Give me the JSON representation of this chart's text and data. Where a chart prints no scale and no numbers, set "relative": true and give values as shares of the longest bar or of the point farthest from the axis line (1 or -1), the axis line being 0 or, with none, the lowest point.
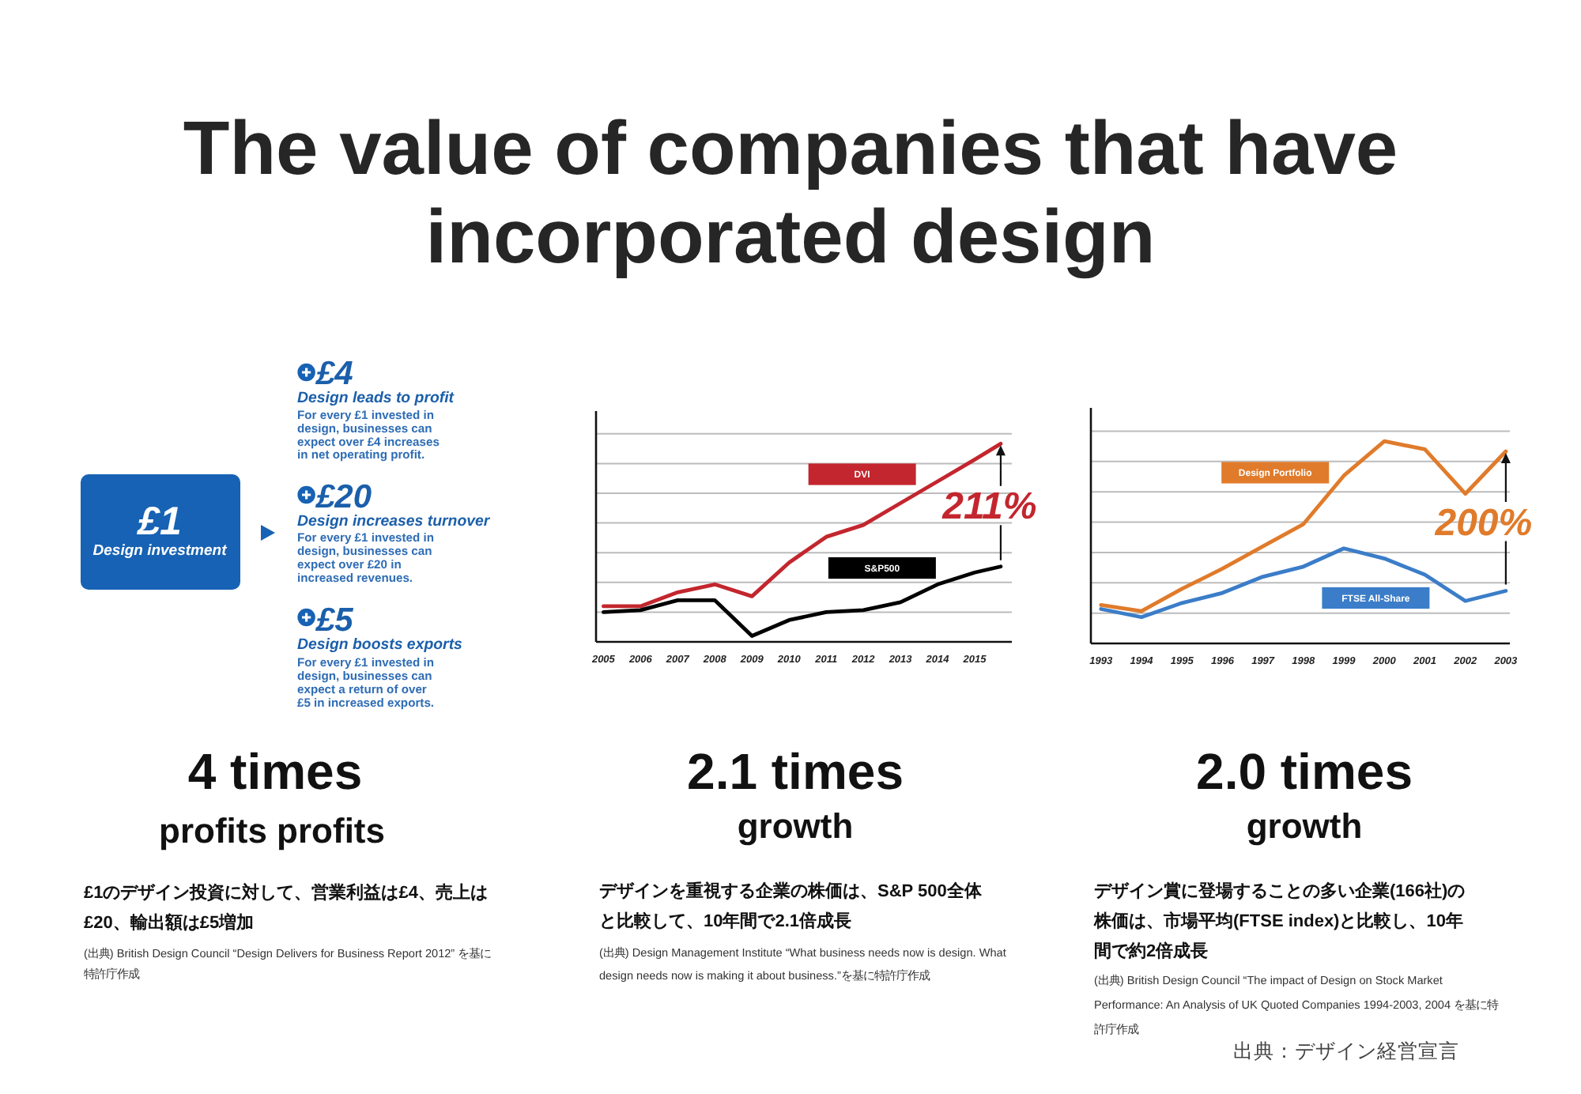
{
  "chart_data": [
    {
      "type": "other",
      "title": "The value of companies that have incorporated design",
      "annotations": [
        "£1",
        "Design investment",
        "£4",
        "Design leads to profit",
        "For every £1 invested in design, businesses can expect over £4 increases in net operating profit.",
        "£20",
        "Design increases turnover",
        "For every £1 invested in design, businesses can expect over £20 in increased revenues.",
        "£5",
        "Design boosts exports",
        "For every £1 invested in design, businesses can expect a return of over £5 in increased exports.",
        "4 times",
        "profits profits",
        "£1のデザイン投資に対して、営業利益は£4、売上は£20、輸出額は£5増加",
        "(出典) British Design Council “Design Delivers for Business Report 2012” を基に特許庁作成"
      ]
    },
    {
      "type": "line",
      "x": [
        2005,
        2006,
        2007,
        2008,
        2009,
        2010,
        2011,
        2012,
        2013,
        2014,
        2015,
        2015.7
      ],
      "xlim": [
        2004.8,
        2016
      ],
      "xticks": [
        2005,
        2006,
        2007,
        2008,
        2009,
        2010,
        2011,
        2012,
        2013,
        2014,
        2015
      ],
      "relative": true,
      "grid": "y",
      "series": [
        {
          "name": "DVI",
          "color": "#c3262e",
          "values": [
            0.18,
            0.18,
            0.25,
            0.29,
            0.23,
            0.4,
            0.53,
            0.59,
            0.7,
            0.81,
            0.92,
            1.0
          ]
        },
        {
          "name": "S&P500",
          "color": "#000000",
          "values": [
            0.15,
            0.16,
            0.21,
            0.21,
            0.03,
            0.11,
            0.15,
            0.16,
            0.2,
            0.29,
            0.35,
            0.38
          ]
        }
      ],
      "annotations": [
        "211%",
        "2.1 times",
        "growth",
        "デザインを重視する企業の株価は、S&P 500全体と比較して、10年間で2.1倍成長",
        "(出典) Design Management Institute “What business needs now is design. What design needs now is making it about business.”を基に特許庁作成"
      ]
    },
    {
      "type": "line",
      "x": [
        1993,
        1994,
        1995,
        1996,
        1997,
        1998,
        1999,
        2000,
        2001,
        2002,
        2003
      ],
      "xlim": [
        1992.75,
        2003.1
      ],
      "xticks": [
        1993,
        1994,
        1995,
        1996,
        1997,
        1998,
        1999,
        2000,
        2001,
        2002,
        2003
      ],
      "relative": true,
      "grid": "y",
      "series": [
        {
          "name": "Design Portfolio",
          "color": "#e07b2b",
          "values": [
            0.19,
            0.16,
            0.27,
            0.37,
            0.48,
            0.59,
            0.83,
            1.0,
            0.96,
            0.74,
            0.95
          ]
        },
        {
          "name": "FTSE All-Share",
          "color": "#3b7dc8",
          "values": [
            0.17,
            0.13,
            0.2,
            0.25,
            0.33,
            0.38,
            0.47,
            0.42,
            0.34,
            0.21,
            0.26
          ]
        }
      ],
      "annotations": [
        "200%",
        "2.0 times",
        "growth",
        "デザイン賞に登場することの多い企業(166社)の株価は、市場平均(FTSE index)と比較し、10年間で約2倍成長",
        "(出典) British Design Council “The impact of Design on Stock Market Performance: An Analysis of UK Quoted Companies 1994-2003, 2004 を基に特許庁作成",
        "出典：デザイン経営宣言"
      ]
    }
  ]
}
